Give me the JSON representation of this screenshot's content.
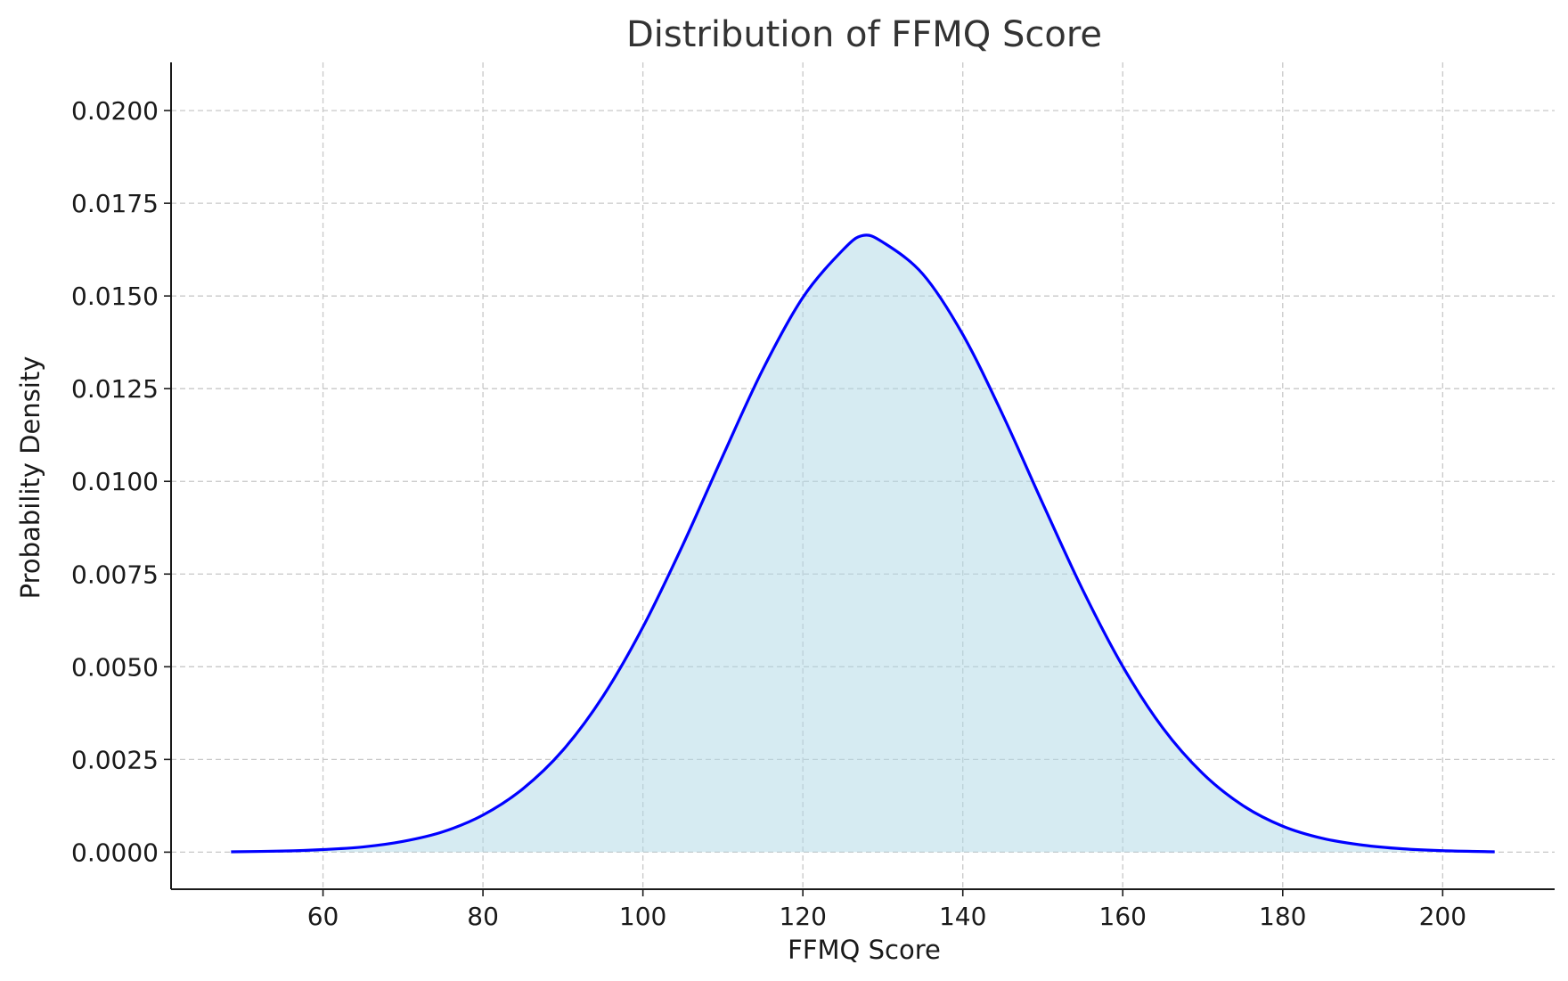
{
  "chart_data": {
    "type": "area",
    "title": "Distribution of FFMQ Score",
    "xlabel": "FFMQ Score",
    "ylabel": "Probability Density",
    "xlim": [
      41,
      214
    ],
    "ylim": [
      -0.001,
      0.0213
    ],
    "x_ticks": [
      60,
      80,
      100,
      120,
      140,
      160,
      180,
      200
    ],
    "x_tick_labels": [
      "60",
      "80",
      "100",
      "120",
      "140",
      "160",
      "180",
      "200"
    ],
    "y_ticks": [
      0.0,
      0.0025,
      0.005,
      0.0075,
      0.01,
      0.0125,
      0.015,
      0.0175,
      0.02
    ],
    "y_tick_labels": [
      "0.0000",
      "0.0025",
      "0.0050",
      "0.0075",
      "0.0100",
      "0.0125",
      "0.0150",
      "0.0175",
      "0.0200"
    ],
    "grid": true,
    "series": [
      {
        "color": "#0000ff",
        "fill_color": "#add8e6",
        "x": [
          48.5,
          55,
          60,
          65,
          70,
          75,
          80,
          85,
          90,
          95,
          100,
          105,
          110,
          115,
          120,
          125,
          127.5,
          130,
          135,
          140,
          145,
          150,
          155,
          160,
          165,
          170,
          175,
          180,
          185,
          190,
          195,
          200,
          206.5
        ],
        "y": [
          1e-05,
          3e-05,
          7e-05,
          0.00014,
          0.00029,
          0.00055,
          0.001,
          0.00171,
          0.00275,
          0.0042,
          0.00607,
          0.00829,
          0.01069,
          0.01302,
          0.01496,
          0.01624,
          0.01663,
          0.01645,
          0.01559,
          0.01396,
          0.01179,
          0.0094,
          0.00707,
          0.00501,
          0.00335,
          0.00212,
          0.00126,
          0.0007,
          0.00037,
          0.00019,
          9e-05,
          4e-05,
          1e-05
        ]
      }
    ]
  },
  "colors": {
    "line": "#0000ff",
    "fill": "#add8e6",
    "grid": "#c8c8c8",
    "axis": "#1a1a1a",
    "title": "#333333"
  }
}
